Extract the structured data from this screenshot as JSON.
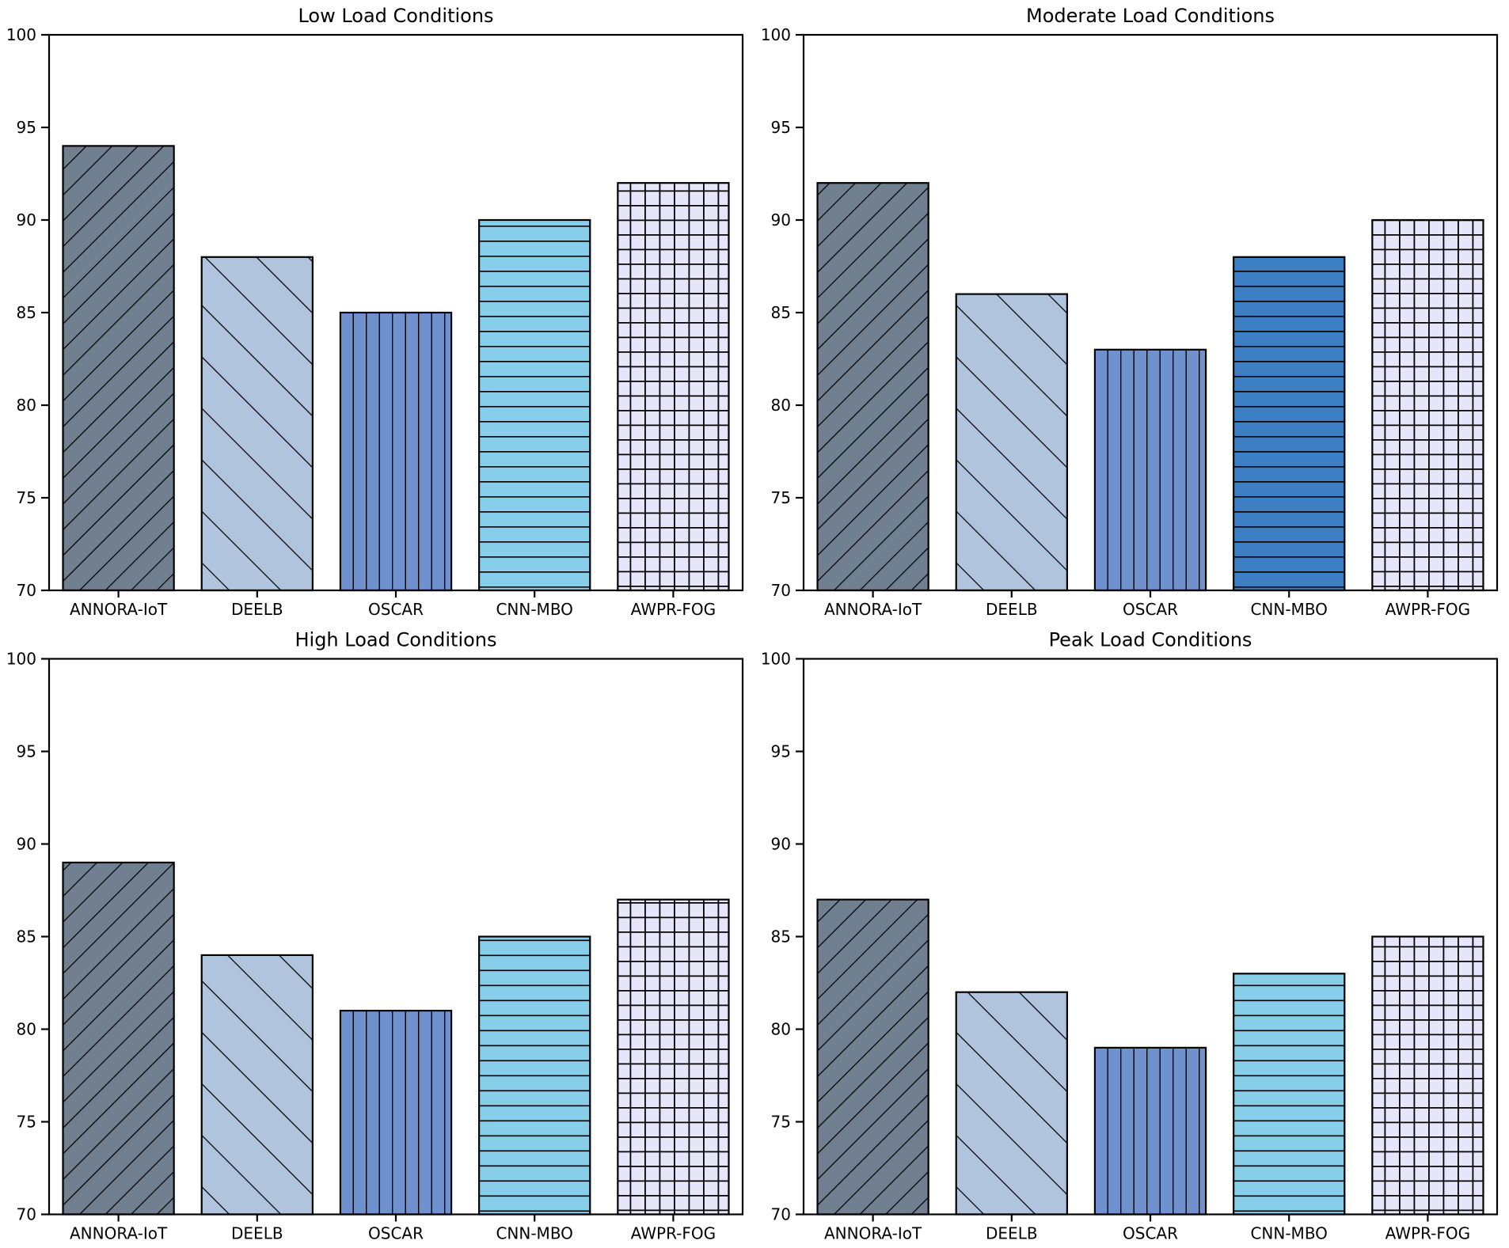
{
  "figure": {
    "background": "#ffffff",
    "rows": 2,
    "cols": 2
  },
  "styles": {
    "edge_color": "#000000",
    "hatch_color": "#000000",
    "text_color": "#000000",
    "axis_color": "#000000"
  },
  "chart_data": [
    {
      "type": "bar",
      "title": "Low Load Conditions",
      "categories": [
        "ANNORA-IoT",
        "DEELB",
        "OSCAR",
        "CNN-MBO",
        "AWPR-FOG"
      ],
      "values": [
        94,
        88,
        85,
        90,
        92
      ],
      "ylim": [
        70,
        100
      ],
      "yticks": [
        70,
        75,
        80,
        85,
        90,
        95,
        100
      ],
      "bar_colors": [
        "#708090",
        "#b0c4de",
        "#6f92cf",
        "#87ceeb",
        "#e6e6fa"
      ],
      "hatches": [
        "/",
        "\\",
        "|",
        "-",
        "+"
      ],
      "xlabel": "",
      "ylabel": "",
      "grid": false,
      "legend_position": "none"
    },
    {
      "type": "bar",
      "title": "Moderate Load Conditions",
      "categories": [
        "ANNORA-IoT",
        "DEELB",
        "OSCAR",
        "CNN-MBO",
        "AWPR-FOG"
      ],
      "values": [
        92,
        86,
        83,
        88,
        90
      ],
      "ylim": [
        70,
        100
      ],
      "yticks": [
        70,
        75,
        80,
        85,
        90,
        95,
        100
      ],
      "bar_colors": [
        "#708090",
        "#b0c4de",
        "#6f92cf",
        "#3d7fc4",
        "#e6e6fa"
      ],
      "hatches": [
        "/",
        "\\",
        "|",
        "-",
        "+"
      ],
      "xlabel": "",
      "ylabel": "",
      "grid": false,
      "legend_position": "none"
    },
    {
      "type": "bar",
      "title": "High Load Conditions",
      "categories": [
        "ANNORA-IoT",
        "DEELB",
        "OSCAR",
        "CNN-MBO",
        "AWPR-FOG"
      ],
      "values": [
        89,
        84,
        81,
        85,
        87
      ],
      "ylim": [
        70,
        100
      ],
      "yticks": [
        70,
        75,
        80,
        85,
        90,
        95,
        100
      ],
      "bar_colors": [
        "#708090",
        "#b0c4de",
        "#6f92cf",
        "#87ceeb",
        "#e6e6fa"
      ],
      "hatches": [
        "/",
        "\\",
        "|",
        "-",
        "+"
      ],
      "xlabel": "",
      "ylabel": "",
      "grid": false,
      "legend_position": "none"
    },
    {
      "type": "bar",
      "title": "Peak Load Conditions",
      "categories": [
        "ANNORA-IoT",
        "DEELB",
        "OSCAR",
        "CNN-MBO",
        "AWPR-FOG"
      ],
      "values": [
        87,
        82,
        79,
        83,
        85
      ],
      "ylim": [
        70,
        100
      ],
      "yticks": [
        70,
        75,
        80,
        85,
        90,
        95,
        100
      ],
      "bar_colors": [
        "#708090",
        "#b0c4de",
        "#6f92cf",
        "#87ceeb",
        "#e6e6fa"
      ],
      "hatches": [
        "/",
        "\\",
        "|",
        "-",
        "+"
      ],
      "xlabel": "",
      "ylabel": "",
      "grid": false,
      "legend_position": "none"
    }
  ]
}
